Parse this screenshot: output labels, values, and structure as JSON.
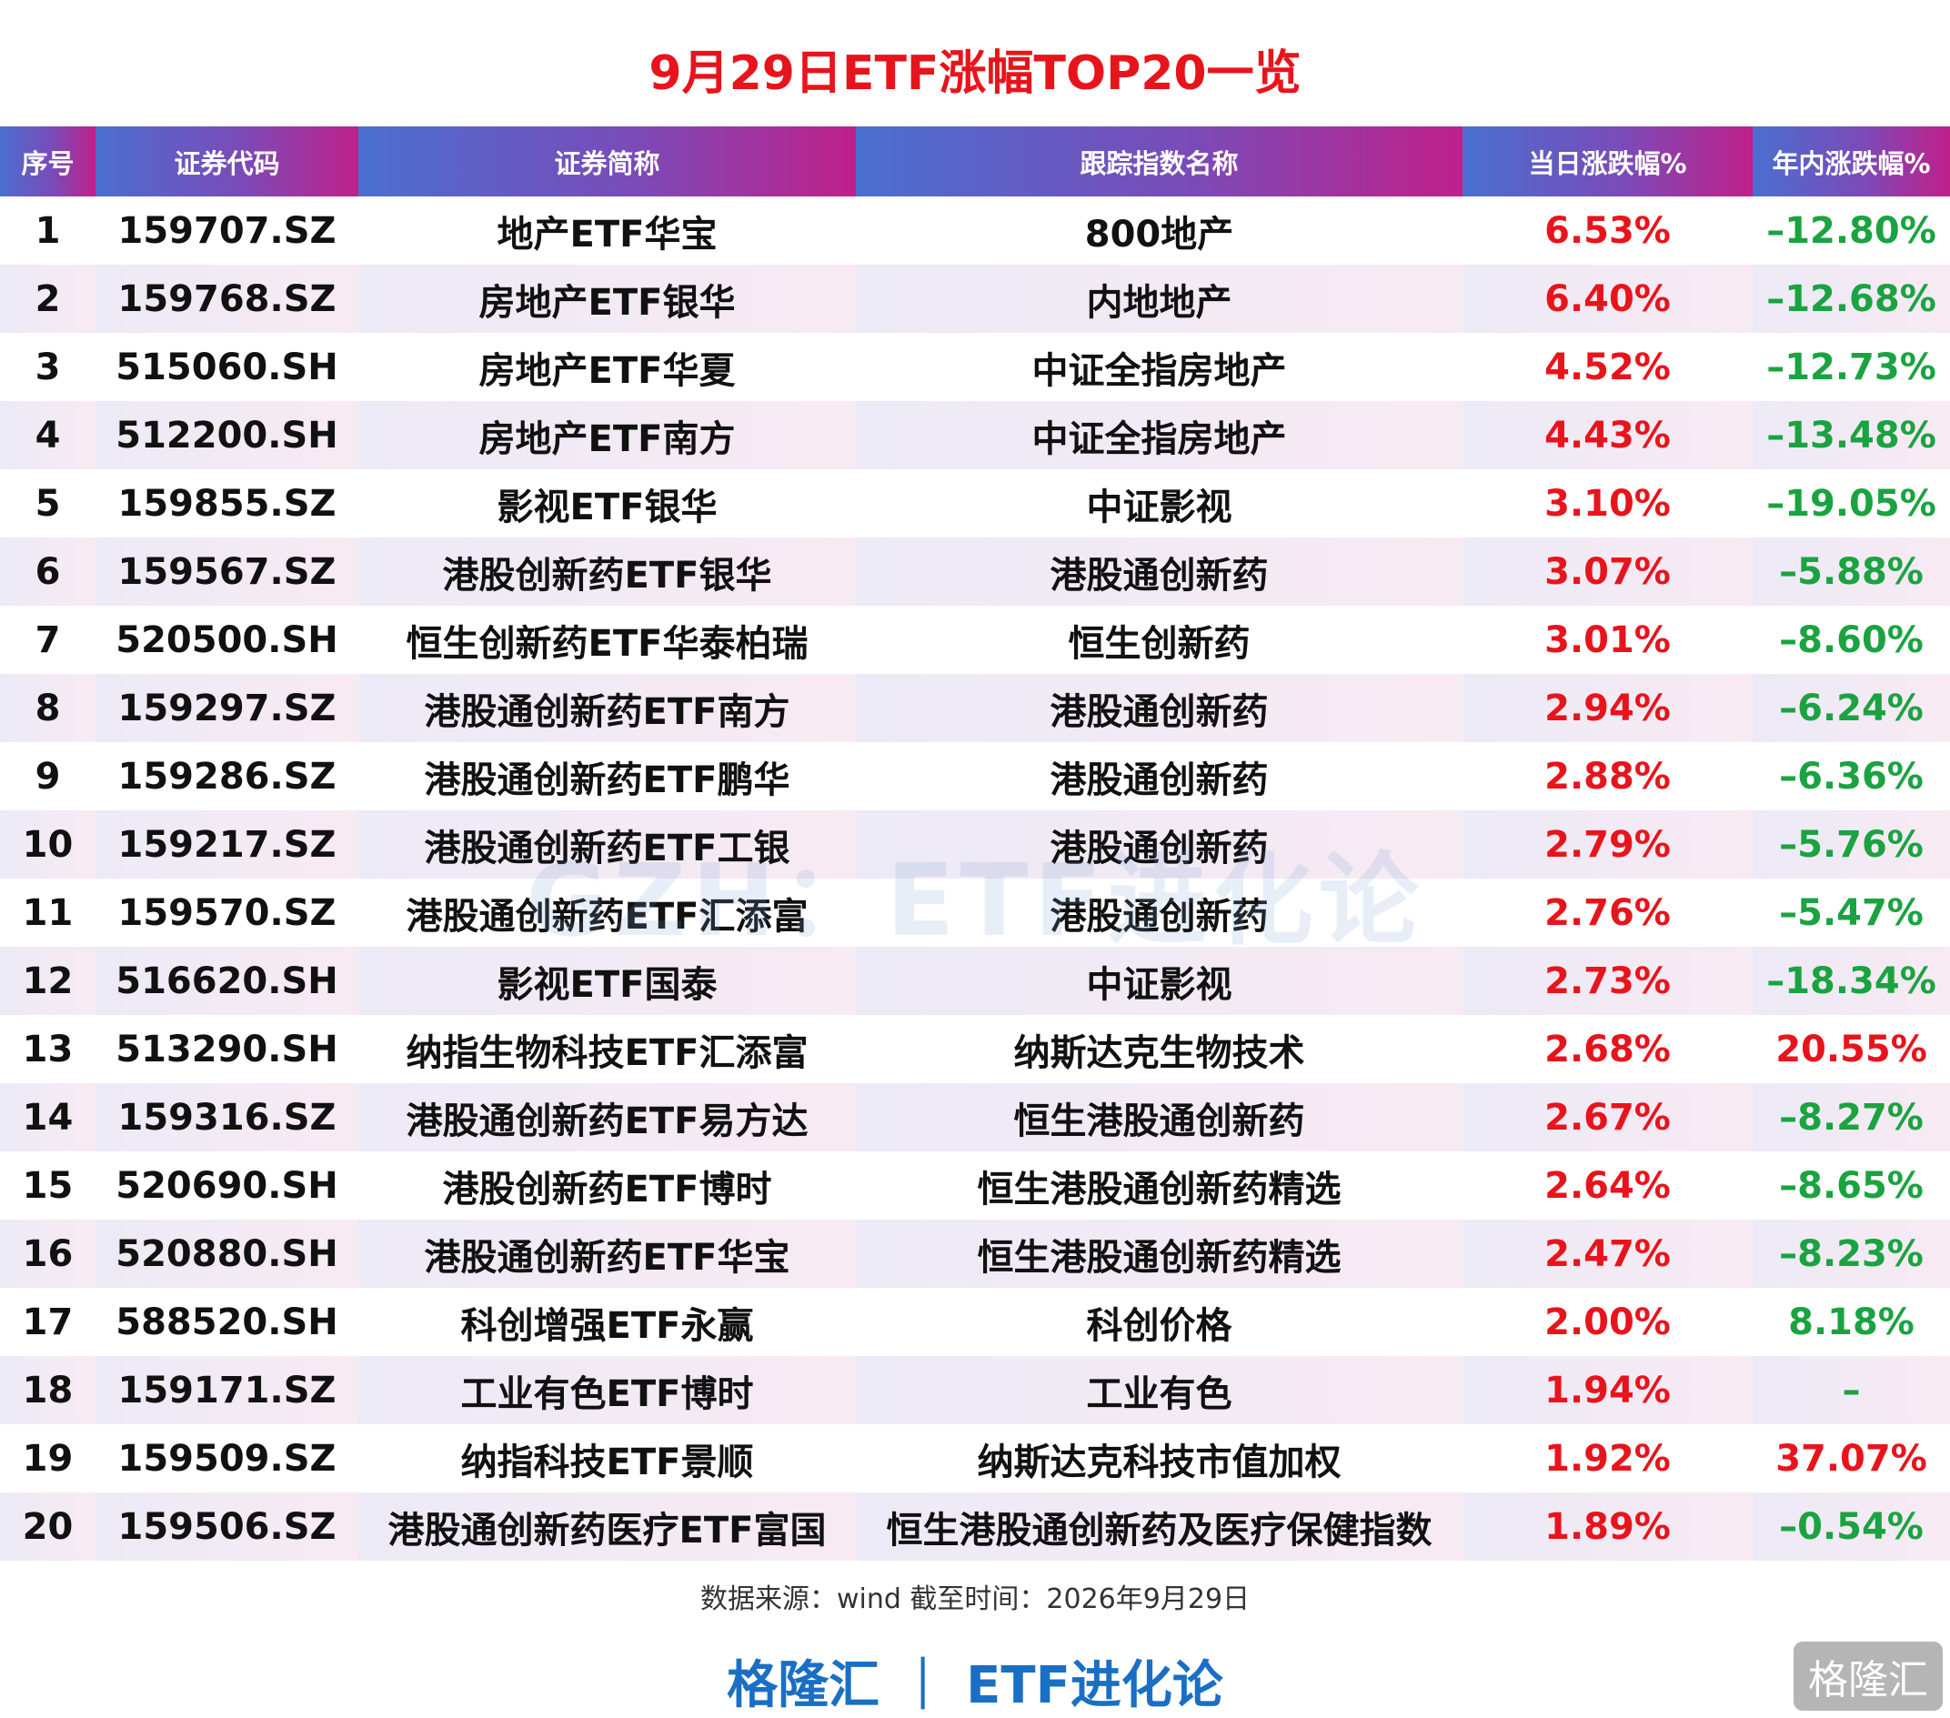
{
  "header": {
    "title": "9月29日ETF涨幅TOP20一览"
  },
  "table": {
    "columns": [
      "序号",
      "证券代码",
      "证券简称",
      "跟踪指数名称",
      "当日涨跌幅%",
      "年内涨跌幅%"
    ],
    "rows": [
      [
        "1",
        "159707.SZ",
        "地产ETF华宝",
        "800地产",
        "6.53%",
        "–12.80%"
      ],
      [
        "2",
        "159768.SZ",
        "房地产ETF银华",
        "内地地产",
        "6.40%",
        "–12.68%"
      ],
      [
        "3",
        "515060.SH",
        "房地产ETF华夏",
        "中证全指房地产",
        "4.52%",
        "–12.73%"
      ],
      [
        "4",
        "512200.SH",
        "房地产ETF南方",
        "中证全指房地产",
        "4.43%",
        "–13.48%"
      ],
      [
        "5",
        "159855.SZ",
        "影视ETF银华",
        "中证影视",
        "3.10%",
        "–19.05%"
      ],
      [
        "6",
        "159567.SZ",
        "港股创新药ETF银华",
        "港股通创新药",
        "3.07%",
        "–5.88%"
      ],
      [
        "7",
        "520500.SH",
        "恒生创新药ETF华泰柏瑞",
        "恒生创新药",
        "3.01%",
        "–8.60%"
      ],
      [
        "8",
        "159297.SZ",
        "港股通创新药ETF南方",
        "港股通创新药",
        "2.94%",
        "–6.24%"
      ],
      [
        "9",
        "159286.SZ",
        "港股通创新药ETF鹏华",
        "港股通创新药",
        "2.88%",
        "–6.36%"
      ],
      [
        "10",
        "159217.SZ",
        "港股通创新药ETF工银",
        "港股通创新药",
        "2.79%",
        "–5.76%"
      ],
      [
        "11",
        "159570.SZ",
        "港股通创新药ETF汇添富",
        "港股通创新药",
        "2.76%",
        "–5.47%"
      ],
      [
        "12",
        "516620.SH",
        "影视ETF国泰",
        "中证影视",
        "2.73%",
        "–18.34%"
      ],
      [
        "13",
        "513290.SH",
        "纳指生物科技ETF汇添富",
        "纳斯达克生物技术",
        "2.68%",
        "20.55%"
      ],
      [
        "14",
        "159316.SZ",
        "港股通创新药ETF易方达",
        "恒生港股通创新药",
        "2.67%",
        "–8.27%"
      ],
      [
        "15",
        "520690.SH",
        "港股创新药ETF博时",
        "恒生港股通创新药精选",
        "2.64%",
        "–8.65%"
      ],
      [
        "16",
        "520880.SH",
        "港股通创新药ETF华宝",
        "恒生港股通创新药精选",
        "2.47%",
        "–8.23%"
      ],
      [
        "17",
        "588520.SH",
        "科创增强ETF永赢",
        "科创价格",
        "2.00%",
        "8.18%"
      ],
      [
        "18",
        "159171.SZ",
        "工业有色ETF博时",
        "工业有色",
        "1.94%",
        "–"
      ],
      [
        "19",
        "159509.SZ",
        "纳指科技ETF景顺",
        "纳斯达克科技市值加权",
        "1.92%",
        "37.07%"
      ],
      [
        "20",
        "159506.SZ",
        "港股通创新药医疗ETF富国",
        "恒生港股通创新药及医疗保健指数",
        "1.89%",
        "–0.54%"
      ]
    ],
    "daily_color": "#e8141c",
    "year_colors": [
      "#1aa340",
      "#1aa340",
      "#1aa340",
      "#1aa340",
      "#1aa340",
      "#1aa340",
      "#1aa340",
      "#1aa340",
      "#1aa340",
      "#1aa340",
      "#1aa340",
      "#1aa340",
      "#e8141c",
      "#1aa340",
      "#1aa340",
      "#1aa340",
      "#1aa340",
      "#1aa340",
      "#e8141c",
      "#1aa340"
    ]
  },
  "footer": {
    "source": "数据来源：wind 截至时间：2026年9月29日",
    "brand": "格隆汇 ｜ ETF进化论",
    "watermark": "GZH：ETF进化论",
    "logo": "格隆汇"
  }
}
